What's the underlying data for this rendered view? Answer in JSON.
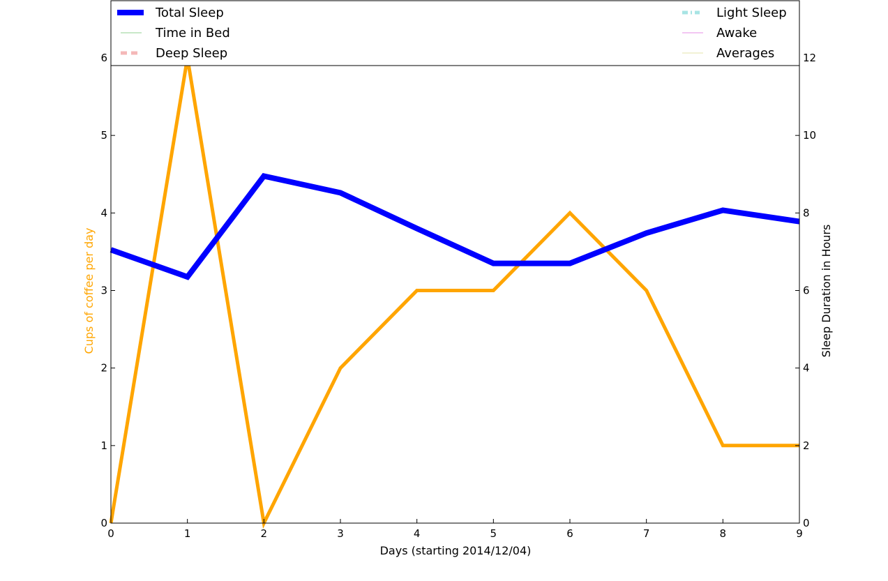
{
  "chart_data": {
    "type": "line",
    "xlabel": "Days (starting 2014/12/04)",
    "x": [
      0,
      1,
      2,
      3,
      4,
      5,
      6,
      7,
      8,
      9
    ],
    "xlim": [
      0,
      9
    ],
    "xticks": [
      "0",
      "1",
      "2",
      "3",
      "4",
      "5",
      "6",
      "7",
      "8",
      "9"
    ],
    "y_left": {
      "label": "Cups of coffee per day",
      "label_color": "#ffa500",
      "lim": [
        0,
        6
      ],
      "ticks": [
        "0",
        "1",
        "2",
        "3",
        "4",
        "5",
        "6"
      ]
    },
    "y_right": {
      "label": "Sleep Duration in Hours",
      "lim": [
        0,
        12
      ],
      "ticks": [
        "0",
        "2",
        "4",
        "6",
        "8",
        "10",
        "12"
      ]
    },
    "series": [
      {
        "axis": "left",
        "color": "#ffa500",
        "values": [
          0,
          6,
          0,
          2,
          3,
          3,
          4,
          3,
          1,
          1
        ]
      },
      {
        "name": "Total Sleep",
        "axis": "right",
        "color": "#0000ff",
        "values": [
          7.05,
          6.35,
          8.95,
          8.52,
          7.6,
          6.7,
          6.7,
          7.48,
          8.07,
          7.78
        ]
      }
    ],
    "legend": {
      "placement": "top",
      "entries": [
        {
          "label": "Total Sleep",
          "color": "#0000ff",
          "style": "solid-thick"
        },
        {
          "label": "Time in Bed",
          "color": "#90d090",
          "style": "solid-thin"
        },
        {
          "label": "Deep Sleep",
          "color": "#f4b8b8",
          "style": "dashed"
        },
        {
          "label": "Light Sleep",
          "color": "#a8e4e4",
          "style": "dashdot"
        },
        {
          "label": "Awake",
          "color": "#e68ce6",
          "style": "solid-thin"
        },
        {
          "label": "Averages",
          "color": "#e4e4a8",
          "style": "solid-thin"
        }
      ]
    },
    "grid": false
  }
}
